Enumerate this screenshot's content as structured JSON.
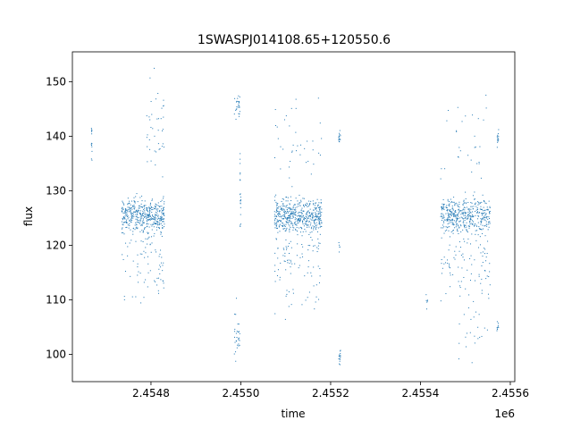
{
  "chart_data": {
    "type": "scatter",
    "title": "1SWASPJ014108.65+120550.6",
    "xlabel": "time",
    "ylabel": "flux",
    "x_offset_label": "1e6",
    "xlim": [
      2454625,
      2455610
    ],
    "ylim": [
      95,
      155.5
    ],
    "x_ticks": [
      2454800,
      2455000,
      2455200,
      2455400,
      2455600
    ],
    "x_tick_labels": [
      "2.4548",
      "2.4550",
      "2.4552",
      "2.4554",
      "2.4556"
    ],
    "y_ticks": [
      100,
      110,
      120,
      130,
      140,
      150
    ],
    "y_tick_labels": [
      "100",
      "110",
      "120",
      "130",
      "140",
      "150"
    ],
    "grid": false,
    "marker_color": "#1f77b4",
    "clusters": [
      {
        "x_start": 2454667,
        "x_end": 2454669,
        "y_center": 139,
        "y_spread": 4,
        "points": 14
      },
      {
        "x_start": 2454735,
        "x_end": 2454830,
        "y_center": 125.5,
        "y_spread": 3,
        "points": 420
      },
      {
        "x_start": 2454735,
        "x_end": 2454830,
        "y_center": 117,
        "y_spread": 9,
        "points": 90
      },
      {
        "x_start": 2454790,
        "x_end": 2454830,
        "y_center": 140,
        "y_spread": 10,
        "points": 40
      },
      {
        "x_start": 2454985,
        "x_end": 2454998,
        "y_center": 104,
        "y_spread": 5,
        "points": 30
      },
      {
        "x_start": 2454985,
        "x_end": 2454998,
        "y_center": 146,
        "y_spread": 3,
        "points": 25
      },
      {
        "x_start": 2454998,
        "x_end": 2455000,
        "y_center": 130,
        "y_spread": 7,
        "points": 20
      },
      {
        "x_start": 2455075,
        "x_end": 2455180,
        "y_center": 125.5,
        "y_spread": 3,
        "points": 480
      },
      {
        "x_start": 2455075,
        "x_end": 2455180,
        "y_center": 117,
        "y_spread": 8,
        "points": 110
      },
      {
        "x_start": 2455075,
        "x_end": 2455180,
        "y_center": 138,
        "y_spread": 10,
        "points": 40
      },
      {
        "x_start": 2455218,
        "x_end": 2455222,
        "y_center": 139.5,
        "y_spread": 1.5,
        "points": 15
      },
      {
        "x_start": 2455218,
        "x_end": 2455222,
        "y_center": 99.5,
        "y_spread": 1.5,
        "points": 15
      },
      {
        "x_start": 2455218,
        "x_end": 2455222,
        "y_center": 120,
        "y_spread": 1,
        "points": 5
      },
      {
        "x_start": 2455412,
        "x_end": 2455416,
        "y_center": 110,
        "y_spread": 2,
        "points": 6
      },
      {
        "x_start": 2455445,
        "x_end": 2455555,
        "y_center": 125.5,
        "y_spread": 3,
        "points": 430
      },
      {
        "x_start": 2455445,
        "x_end": 2455555,
        "y_center": 117,
        "y_spread": 8,
        "points": 100
      },
      {
        "x_start": 2455445,
        "x_end": 2455555,
        "y_center": 138,
        "y_spread": 11,
        "points": 30
      },
      {
        "x_start": 2455485,
        "x_end": 2455555,
        "y_center": 104,
        "y_spread": 5,
        "points": 20
      },
      {
        "x_start": 2455570,
        "x_end": 2455574,
        "y_center": 139.5,
        "y_spread": 1.5,
        "points": 14
      },
      {
        "x_start": 2455570,
        "x_end": 2455574,
        "y_center": 105,
        "y_spread": 1.5,
        "points": 10
      }
    ]
  }
}
